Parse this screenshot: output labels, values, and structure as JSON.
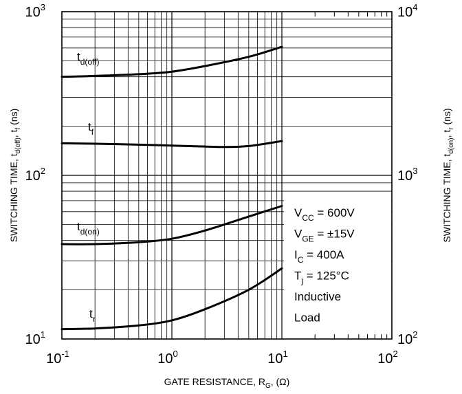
{
  "chart_data": {
    "type": "line",
    "x_axis": {
      "label": "GATE RESISTANCE, R",
      "label_sub": "G",
      "label_tail": ", (Ω)",
      "scale": "log",
      "range": [
        0.1,
        100
      ],
      "ticks": [
        {
          "base": "10",
          "exp": "-1"
        },
        {
          "base": "10",
          "exp": "0"
        },
        {
          "base": "10",
          "exp": "1"
        },
        {
          "base": "10",
          "exp": "2"
        }
      ]
    },
    "y_axis_left": {
      "label_parts": [
        "SWITCHING TIME, t",
        "d(off)",
        ", t",
        "f",
        " (ns)"
      ],
      "scale": "log",
      "range": [
        10,
        1000
      ],
      "ticks": [
        {
          "base": "10",
          "exp": "1"
        },
        {
          "base": "10",
          "exp": "2"
        },
        {
          "base": "10",
          "exp": "3"
        }
      ]
    },
    "y_axis_right": {
      "label_parts": [
        "SWITCHING TIME, t",
        "d(on)",
        ", t",
        "r",
        " (ns)"
      ],
      "scale": "log",
      "range": [
        100,
        10000
      ],
      "ticks": [
        {
          "base": "10",
          "exp": "2"
        },
        {
          "base": "10",
          "exp": "3"
        },
        {
          "base": "10",
          "exp": "4"
        }
      ]
    },
    "grid": true,
    "series": [
      {
        "name": "d(off)",
        "label_main": "t",
        "label_sub": "d(off)",
        "axis": "left",
        "x": [
          0.1,
          0.2,
          0.5,
          1,
          2,
          5,
          10
        ],
        "y": [
          400,
          405,
          415,
          430,
          465,
          530,
          610
        ]
      },
      {
        "name": "f",
        "label_main": "t",
        "label_sub": "f",
        "axis": "left",
        "x": [
          0.1,
          0.2,
          0.5,
          1,
          2,
          3,
          5,
          10
        ],
        "y": [
          157,
          156,
          154,
          152,
          150,
          149,
          151,
          162
        ]
      },
      {
        "name": "d(on)",
        "label_main": "t",
        "label_sub": "d(on)",
        "axis": "right",
        "x": [
          0.1,
          0.2,
          0.5,
          1,
          2,
          5,
          10
        ],
        "y": [
          380,
          380,
          390,
          410,
          460,
          560,
          650
        ]
      },
      {
        "name": "r",
        "label_main": "t",
        "label_sub": "r",
        "axis": "right",
        "x": [
          0.1,
          0.2,
          0.5,
          1,
          2,
          5,
          10
        ],
        "y": [
          115,
          116,
          121,
          130,
          152,
          200,
          270
        ]
      }
    ],
    "conditions": [
      {
        "main": "V",
        "sub": "CC",
        "tail": " = 600V"
      },
      {
        "main": "V",
        "sub": "GE",
        "tail": " = ±15V"
      },
      {
        "main": "I",
        "sub": "C",
        "tail": " = 400A"
      },
      {
        "main": "T",
        "sub": "j",
        "tail": " = 125°C"
      },
      {
        "main": "Inductive",
        "sub": "",
        "tail": ""
      },
      {
        "main": "Load",
        "sub": "",
        "tail": ""
      }
    ]
  }
}
